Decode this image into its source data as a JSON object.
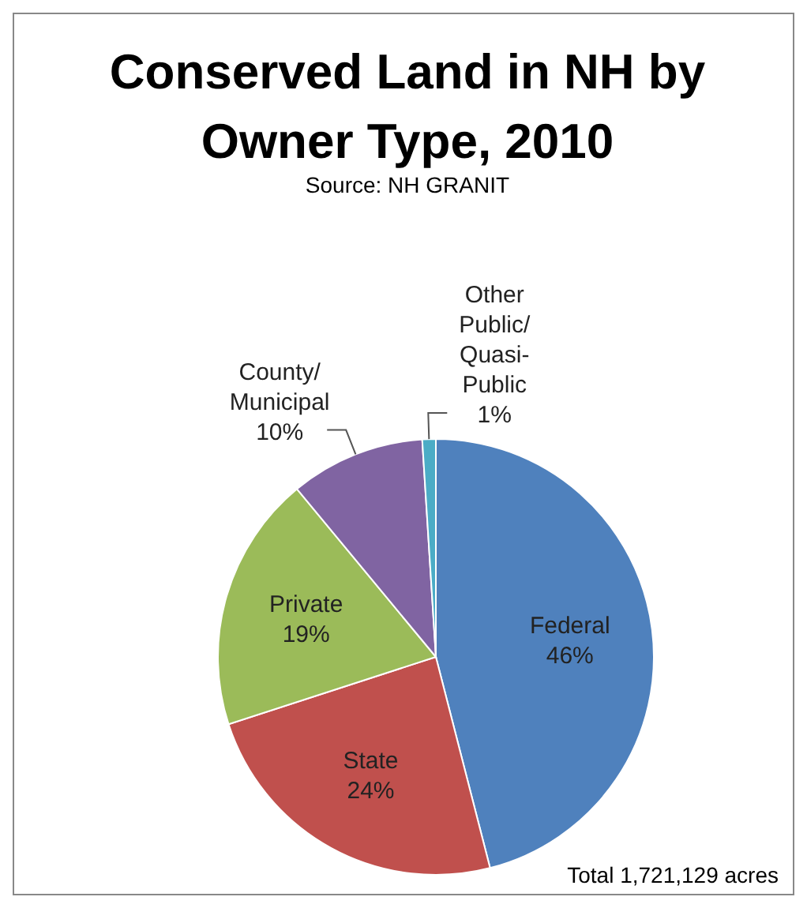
{
  "chart_data": {
    "type": "pie",
    "title": "Conserved Land in NH by Owner Type, 2010",
    "subtitle": "Source: NH GRANIT",
    "categories": [
      "Federal",
      "State",
      "Private",
      "County/Municipal",
      "Other Public/Quasi-Public"
    ],
    "values": [
      46,
      24,
      19,
      10,
      1
    ],
    "colors": [
      "#4f81bd",
      "#c0504d",
      "#9bbb59",
      "#8064a2",
      "#4bacc6"
    ],
    "value_labels": [
      "46%",
      "24%",
      "19%",
      "10%",
      "1%"
    ],
    "annotations": [
      "Total 1,721,129 acres"
    ]
  }
}
